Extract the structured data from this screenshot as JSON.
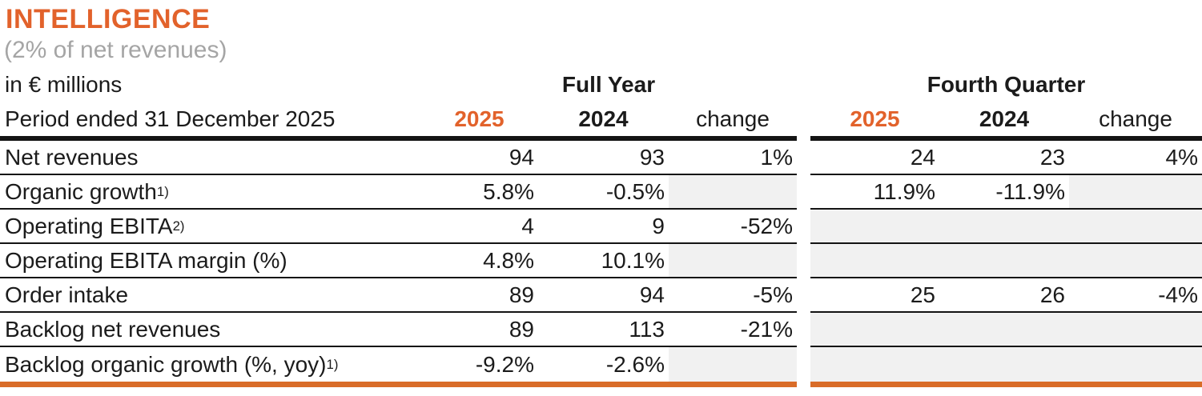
{
  "header": {
    "title": "INTELLIGENCE",
    "subtitle": "(2% of net revenues)",
    "unit_label": "in € millions",
    "period_label": "Period ended 31 December 2025",
    "group_full_year": "Full Year",
    "group_fourth_quarter": "Fourth Quarter",
    "col_2025": "2025",
    "col_2024": "2024",
    "col_change": "change"
  },
  "colors": {
    "accent_orange": "#e2622b",
    "bottom_bar_orange": "#d96c28",
    "subtitle_gray": "#a5a5a5",
    "shaded_cell_gray": "#f1f1f1",
    "text_black": "#1b1b1b",
    "rule_black": "#141414"
  },
  "table": {
    "rows": [
      {
        "label": "Net revenues",
        "sup": "",
        "fy": {
          "y2025": "94",
          "y2024": "93",
          "change": "1%"
        },
        "q4": {
          "y2025": "24",
          "y2024": "23",
          "change": "4%"
        },
        "fy_gray": [],
        "q4_gray": []
      },
      {
        "label": "Organic growth",
        "sup": "1)",
        "fy": {
          "y2025": "5.8%",
          "y2024": "-0.5%",
          "change": ""
        },
        "q4": {
          "y2025": "11.9%",
          "y2024": "-11.9%",
          "change": ""
        },
        "fy_gray": [
          "change"
        ],
        "q4_gray": [
          "change"
        ]
      },
      {
        "label": "Operating EBITA",
        "sup": "2)",
        "fy": {
          "y2025": "4",
          "y2024": "9",
          "change": "-52%"
        },
        "q4": {
          "y2025": "",
          "y2024": "",
          "change": ""
        },
        "fy_gray": [],
        "q4_gray": [
          "y2025",
          "y2024",
          "change"
        ]
      },
      {
        "label": "Operating EBITA margin (%)",
        "sup": "",
        "fy": {
          "y2025": "4.8%",
          "y2024": "10.1%",
          "change": ""
        },
        "q4": {
          "y2025": "",
          "y2024": "",
          "change": ""
        },
        "fy_gray": [
          "change"
        ],
        "q4_gray": [
          "y2025",
          "y2024",
          "change"
        ]
      },
      {
        "label": "Order intake",
        "sup": "",
        "fy": {
          "y2025": "89",
          "y2024": "94",
          "change": "-5%"
        },
        "q4": {
          "y2025": "25",
          "y2024": "26",
          "change": "-4%"
        },
        "fy_gray": [],
        "q4_gray": []
      },
      {
        "label": "Backlog net revenues",
        "sup": "",
        "fy": {
          "y2025": "89",
          "y2024": "113",
          "change": "-21%"
        },
        "q4": {
          "y2025": "",
          "y2024": "",
          "change": ""
        },
        "fy_gray": [],
        "q4_gray": [
          "y2025",
          "y2024",
          "change"
        ]
      },
      {
        "label": "Backlog organic growth (%, yoy)",
        "sup": "1)",
        "fy": {
          "y2025": "-9.2%",
          "y2024": "-2.6%",
          "change": ""
        },
        "q4": {
          "y2025": "",
          "y2024": "",
          "change": ""
        },
        "fy_gray": [
          "change"
        ],
        "q4_gray": [
          "y2025",
          "y2024",
          "change"
        ]
      }
    ]
  }
}
